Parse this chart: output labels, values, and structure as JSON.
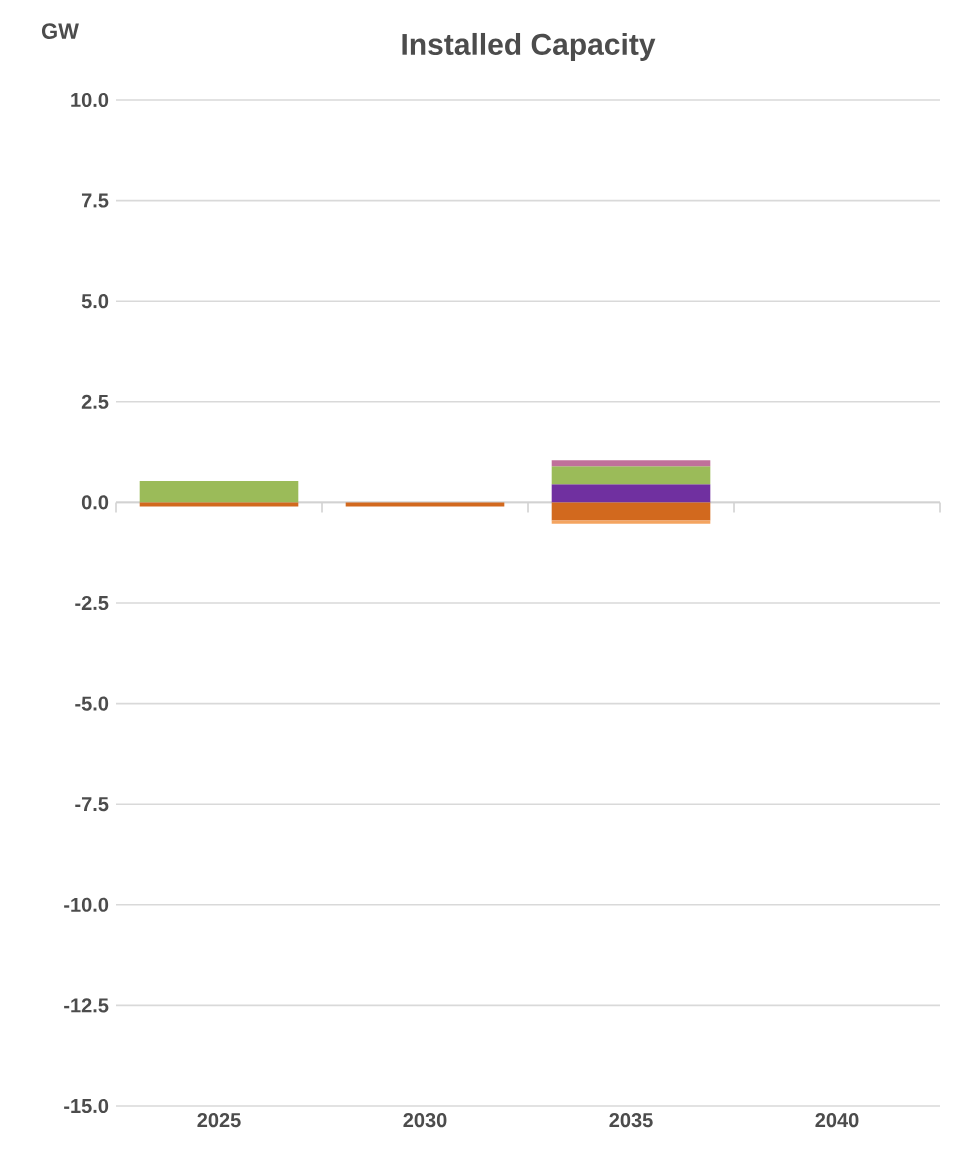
{
  "chart_data": {
    "type": "bar",
    "stacked": true,
    "title": "Installed Capacity",
    "ylabel": "GW",
    "categories": [
      "2025",
      "2030",
      "2035",
      "2040"
    ],
    "series": [
      {
        "color": "#7030a0",
        "values": [
          null,
          null,
          0.45,
          null
        ]
      },
      {
        "color": "#9bbb59",
        "values": [
          0.53,
          null,
          0.45,
          null
        ]
      },
      {
        "color": "#c0709a",
        "values": [
          null,
          null,
          0.15,
          null
        ]
      },
      {
        "color": "#d2691e",
        "values": [
          -0.1,
          -0.1,
          -0.45,
          null
        ]
      },
      {
        "color": "#f4a460",
        "values": [
          null,
          null,
          -0.08,
          null
        ]
      }
    ],
    "ylim": [
      -15,
      10
    ],
    "yticks": [
      {
        "value": -15,
        "label": "-15.0"
      },
      {
        "value": -12.5,
        "label": "-12.5"
      },
      {
        "value": -10,
        "label": "-10.0"
      },
      {
        "value": -7.5,
        "label": "-7.5"
      },
      {
        "value": -5,
        "label": "-5.0"
      },
      {
        "value": -2.5,
        "label": "-2.5"
      },
      {
        "value": 0,
        "label": "0.0"
      },
      {
        "value": 2.5,
        "label": "2.5"
      },
      {
        "value": 5,
        "label": "5.0"
      },
      {
        "value": 7.5,
        "label": "7.5"
      },
      {
        "value": 10,
        "label": "10.0"
      }
    ],
    "grid": "y"
  }
}
